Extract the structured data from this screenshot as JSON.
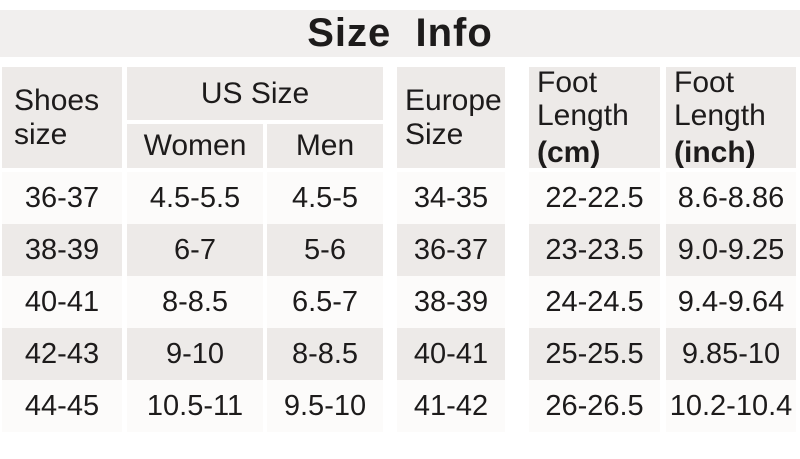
{
  "title": "Size  Info",
  "table": {
    "header": {
      "shoes_size": "Shoes size",
      "us_size": "US Size",
      "women": "Women",
      "men": "Men",
      "europe_size": "Europe Size",
      "foot_cm": {
        "label": "Foot Length",
        "unit": "(cm)"
      },
      "foot_inch": {
        "label": "Foot Length",
        "unit": "(inch)"
      }
    },
    "rows": [
      [
        "36-37",
        "4.5-5.5",
        "4.5-5",
        "34-35",
        "22-22.5",
        "8.6-8.86"
      ],
      [
        "38-39",
        "6-7",
        "5-6",
        "36-37",
        "23-23.5",
        "9.0-9.25"
      ],
      [
        "40-41",
        "8-8.5",
        "6.5-7",
        "38-39",
        "24-24.5",
        "9.4-9.64"
      ],
      [
        "42-43",
        "9-10",
        "8-8.5",
        "40-41",
        "25-25.5",
        "9.85-10"
      ],
      [
        "44-45",
        "10.5-11",
        "9.5-10",
        "41-42",
        "26-26.5",
        "10.2-10.4"
      ]
    ]
  },
  "colors": {
    "bg": "#ffffff",
    "band": "#f1efee",
    "cellgray": "#edeae8",
    "rowlight": "#fcfbfa",
    "text": "#1d1b1b"
  },
  "chart_data": {
    "type": "table",
    "title": "Size Info",
    "columns": [
      "Shoes size",
      "US Size - Women",
      "US Size - Men",
      "Europe Size",
      "Foot Length (cm)",
      "Foot Length (inch)"
    ],
    "rows": [
      [
        "36-37",
        "4.5-5.5",
        "4.5-5",
        "34-35",
        "22-22.5",
        "8.6-8.86"
      ],
      [
        "38-39",
        "6-7",
        "5-6",
        "36-37",
        "23-23.5",
        "9.0-9.25"
      ],
      [
        "40-41",
        "8-8.5",
        "6.5-7",
        "38-39",
        "24-24.5",
        "9.4-9.64"
      ],
      [
        "42-43",
        "9-10",
        "8-8.5",
        "40-41",
        "25-25.5",
        "9.85-10"
      ],
      [
        "44-45",
        "10.5-11",
        "9.5-10",
        "41-42",
        "26-26.5",
        "10.2-10.4"
      ]
    ],
    "layout_hints": {
      "striped_rows": true,
      "header_group": "US Size spans Women and Men columns",
      "units_bold": true
    }
  }
}
